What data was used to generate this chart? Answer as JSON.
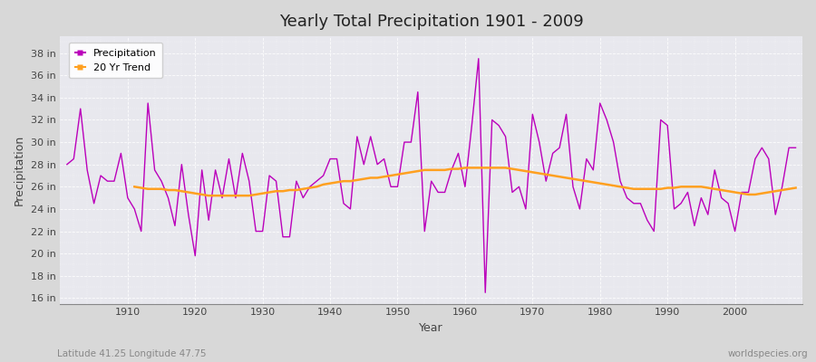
{
  "title": "Yearly Total Precipitation 1901 - 2009",
  "xlabel": "Year",
  "ylabel": "Precipitation",
  "subtitle_left": "Latitude 41.25 Longitude 47.75",
  "subtitle_right": "worldspecies.org",
  "fig_bg_color": "#d8d8d8",
  "plot_bg_color": "#e8e8ee",
  "precip_color": "#bb00bb",
  "trend_color": "#ffa020",
  "ylim": [
    15.5,
    39.5
  ],
  "ytick_values": [
    16,
    18,
    20,
    22,
    24,
    26,
    28,
    30,
    32,
    34,
    36,
    38
  ],
  "xlim": [
    1900,
    2010
  ],
  "xtick_years": [
    1910,
    1920,
    1930,
    1940,
    1950,
    1960,
    1970,
    1980,
    1990,
    2000
  ],
  "years": [
    1901,
    1902,
    1903,
    1904,
    1905,
    1906,
    1907,
    1908,
    1909,
    1910,
    1911,
    1912,
    1913,
    1914,
    1915,
    1916,
    1917,
    1918,
    1919,
    1920,
    1921,
    1922,
    1923,
    1924,
    1925,
    1926,
    1927,
    1928,
    1929,
    1930,
    1931,
    1932,
    1933,
    1934,
    1935,
    1936,
    1937,
    1938,
    1939,
    1940,
    1941,
    1942,
    1943,
    1944,
    1945,
    1946,
    1947,
    1948,
    1949,
    1950,
    1951,
    1952,
    1953,
    1954,
    1955,
    1956,
    1957,
    1958,
    1959,
    1960,
    1961,
    1962,
    1963,
    1964,
    1965,
    1966,
    1967,
    1968,
    1969,
    1970,
    1971,
    1972,
    1973,
    1974,
    1975,
    1976,
    1977,
    1978,
    1979,
    1980,
    1981,
    1982,
    1983,
    1984,
    1985,
    1986,
    1987,
    1988,
    1989,
    1990,
    1991,
    1992,
    1993,
    1994,
    1995,
    1996,
    1997,
    1998,
    1999,
    2000,
    2001,
    2002,
    2003,
    2004,
    2005,
    2006,
    2007,
    2008,
    2009
  ],
  "precip": [
    28.0,
    28.5,
    33.0,
    27.5,
    24.5,
    27.0,
    26.5,
    26.5,
    29.0,
    25.0,
    24.0,
    22.0,
    33.5,
    27.5,
    26.5,
    25.0,
    22.5,
    28.0,
    23.5,
    19.8,
    27.5,
    23.0,
    27.5,
    25.0,
    28.5,
    25.0,
    29.0,
    26.5,
    22.0,
    22.0,
    27.0,
    26.5,
    21.5,
    21.5,
    26.5,
    25.0,
    26.0,
    26.5,
    27.0,
    28.5,
    28.5,
    24.5,
    24.0,
    30.5,
    28.0,
    30.5,
    28.0,
    28.5,
    26.0,
    26.0,
    30.0,
    30.0,
    34.5,
    22.0,
    26.5,
    25.5,
    25.5,
    27.5,
    29.0,
    26.0,
    31.5,
    37.5,
    16.5,
    32.0,
    31.5,
    30.5,
    25.5,
    26.0,
    24.0,
    32.5,
    30.0,
    26.5,
    29.0,
    29.5,
    32.5,
    26.0,
    24.0,
    28.5,
    27.5,
    33.5,
    32.0,
    30.0,
    26.5,
    25.0,
    24.5,
    24.5,
    23.0,
    22.0,
    32.0,
    31.5,
    24.0,
    24.5,
    25.5,
    22.5,
    25.0,
    23.5,
    27.5,
    25.0,
    24.5,
    22.0,
    25.5,
    25.5,
    28.5,
    29.5,
    28.5,
    23.5,
    26.0,
    29.5,
    29.5
  ],
  "trend_years": [
    1911,
    1912,
    1913,
    1914,
    1915,
    1916,
    1917,
    1918,
    1919,
    1920,
    1921,
    1922,
    1923,
    1924,
    1925,
    1926,
    1927,
    1928,
    1929,
    1930,
    1931,
    1932,
    1933,
    1934,
    1935,
    1936,
    1937,
    1938,
    1939,
    1940,
    1941,
    1942,
    1943,
    1944,
    1945,
    1946,
    1947,
    1948,
    1949,
    1950,
    1951,
    1952,
    1953,
    1954,
    1955,
    1956,
    1957,
    1958,
    1959,
    1960,
    1961,
    1962,
    1963,
    1964,
    1965,
    1966,
    1967,
    1968,
    1969,
    1970,
    1971,
    1972,
    1973,
    1974,
    1975,
    1976,
    1977,
    1978,
    1979,
    1980,
    1981,
    1982,
    1983,
    1984,
    1985,
    1986,
    1987,
    1988,
    1989,
    1990,
    1991,
    1992,
    1993,
    1994,
    1995,
    1996,
    1997,
    1998,
    1999,
    2000,
    2001,
    2002,
    2003,
    2004,
    2005,
    2006,
    2007,
    2008,
    2009
  ],
  "trend": [
    26.0,
    25.9,
    25.8,
    25.8,
    25.8,
    25.7,
    25.7,
    25.6,
    25.5,
    25.4,
    25.3,
    25.2,
    25.2,
    25.2,
    25.2,
    25.2,
    25.2,
    25.2,
    25.3,
    25.4,
    25.5,
    25.6,
    25.6,
    25.7,
    25.7,
    25.8,
    25.9,
    26.0,
    26.2,
    26.3,
    26.4,
    26.5,
    26.5,
    26.6,
    26.7,
    26.8,
    26.8,
    26.9,
    27.0,
    27.1,
    27.2,
    27.3,
    27.4,
    27.5,
    27.5,
    27.5,
    27.5,
    27.6,
    27.6,
    27.7,
    27.7,
    27.7,
    27.7,
    27.7,
    27.7,
    27.7,
    27.6,
    27.5,
    27.4,
    27.3,
    27.2,
    27.1,
    27.0,
    26.9,
    26.8,
    26.7,
    26.6,
    26.5,
    26.4,
    26.3,
    26.2,
    26.1,
    26.0,
    25.9,
    25.8,
    25.8,
    25.8,
    25.8,
    25.8,
    25.9,
    25.9,
    26.0,
    26.0,
    26.0,
    26.0,
    25.9,
    25.8,
    25.7,
    25.6,
    25.5,
    25.4,
    25.3,
    25.3,
    25.4,
    25.5,
    25.6,
    25.7,
    25.8,
    25.9
  ]
}
